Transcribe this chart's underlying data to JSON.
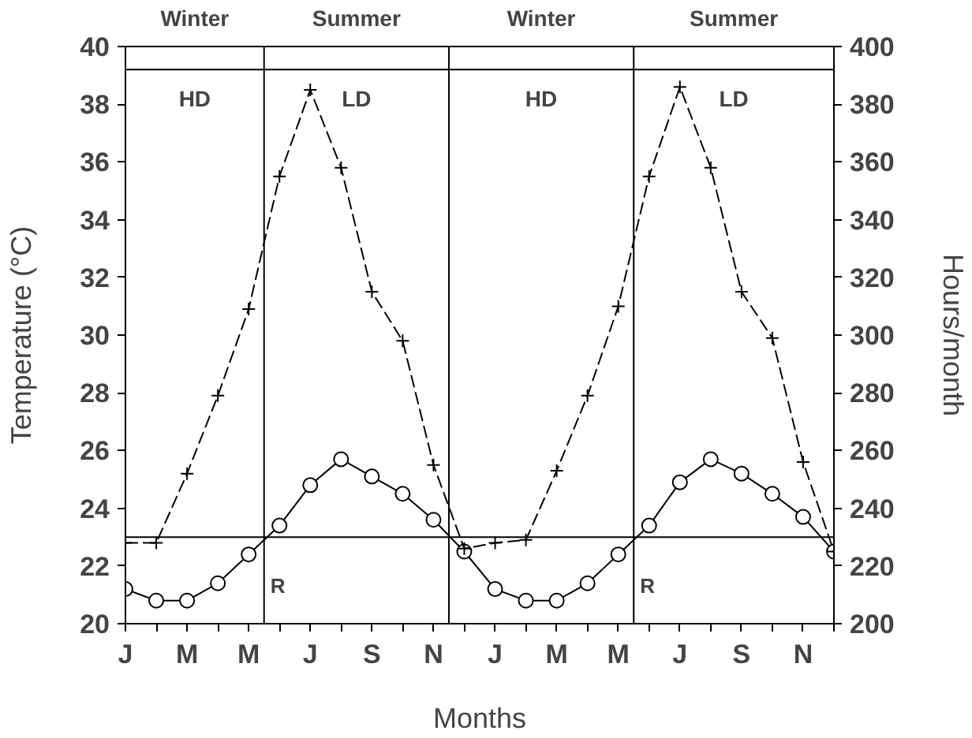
{
  "chart_data": {
    "type": "line",
    "xlabel": "Months",
    "ylabel": "Temperature (°C)",
    "y2label": "Hours/month",
    "categories": [
      "J",
      null,
      "M",
      null,
      "M",
      null,
      "J",
      null,
      "S",
      null,
      "N",
      null,
      "J",
      null,
      "M",
      null,
      "M",
      null,
      "J",
      null,
      "S",
      null,
      "N",
      null
    ],
    "series": [
      {
        "color": "#000000",
        "marker": "circle",
        "line_style": "solid",
        "values": [
          21.2,
          20.8,
          20.8,
          21.4,
          22.4,
          23.4,
          24.8,
          25.7,
          25.1,
          24.5,
          23.6,
          22.5,
          21.2,
          20.8,
          20.8,
          21.4,
          22.4,
          23.4,
          24.9,
          25.7,
          25.2,
          24.5,
          23.7,
          22.5
        ]
      },
      {
        "color": "#000000",
        "marker": "cross",
        "line_style": "dashed",
        "axis": "y2",
        "values": [
          228,
          228,
          252,
          279,
          309,
          355,
          385,
          358,
          315,
          298,
          255,
          226,
          228,
          229,
          253,
          279,
          310,
          355,
          386,
          358,
          315,
          299,
          256,
          225
        ]
      }
    ],
    "ylim": [
      20,
      40
    ],
    "yticks": [
      20,
      22,
      24,
      26,
      28,
      30,
      32,
      34,
      36,
      38,
      40
    ],
    "y2lim": [
      200,
      400
    ],
    "y2ticks": [
      200,
      220,
      240,
      260,
      280,
      300,
      320,
      340,
      360,
      380,
      400
    ],
    "ref_lines": [
      {
        "axis": "y",
        "value": 23
      }
    ],
    "annotations": [
      "Winter",
      "Summer",
      "Winter",
      "Summer",
      "HD",
      "LD",
      "HD",
      "LD",
      "R",
      "R"
    ],
    "grid": false
  }
}
